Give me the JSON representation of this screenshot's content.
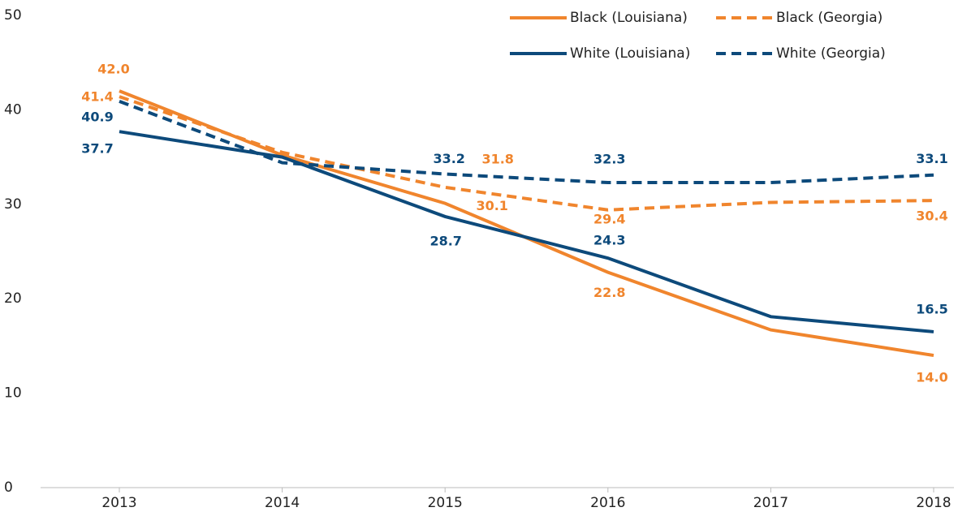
{
  "chart_data": {
    "type": "line",
    "categories": [
      "2013",
      "2014",
      "2015",
      "2016",
      "2017",
      "2018"
    ],
    "series": [
      {
        "name": "Black (Louisiana)",
        "color": "#f0852d",
        "dash": false,
        "values": [
          42.0,
          35.2,
          30.1,
          22.8,
          16.7,
          14.0
        ],
        "value_labels": [
          "42.0",
          null,
          "30.1",
          "22.8",
          null,
          "14.0"
        ]
      },
      {
        "name": "Black (Georgia)",
        "color": "#f0852d",
        "dash": true,
        "values": [
          41.4,
          35.5,
          31.8,
          29.4,
          30.2,
          30.4
        ],
        "value_labels": [
          "41.4",
          null,
          "31.8",
          "29.4",
          null,
          "30.4"
        ]
      },
      {
        "name": "White (Louisiana)",
        "color": "#0d4a7b",
        "dash": false,
        "values": [
          37.7,
          35.0,
          28.7,
          24.3,
          18.1,
          16.5
        ],
        "value_labels": [
          "37.7",
          null,
          "28.7",
          "24.3",
          null,
          "16.5"
        ]
      },
      {
        "name": "White (Georgia)",
        "color": "#0d4a7b",
        "dash": true,
        "values": [
          40.9,
          34.4,
          33.2,
          32.3,
          32.3,
          33.1
        ],
        "value_labels": [
          "40.9",
          null,
          "33.2",
          "32.3",
          null,
          "33.1"
        ]
      }
    ],
    "ylim": [
      0,
      50
    ],
    "yticks": [
      0,
      10,
      20,
      30,
      40,
      50
    ],
    "grid": false,
    "legend": "top-right"
  }
}
